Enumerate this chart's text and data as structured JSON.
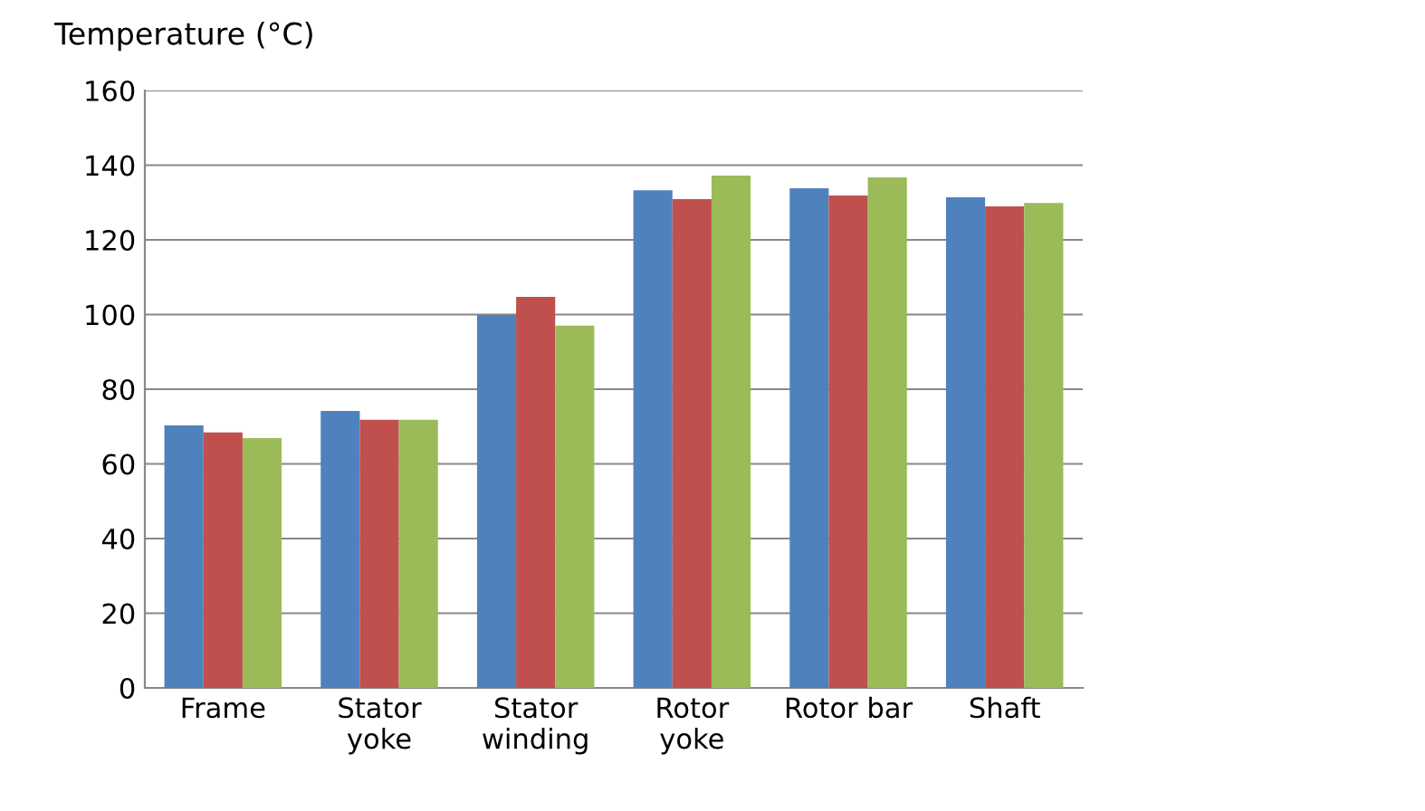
{
  "chart_data": {
    "type": "bar",
    "ylabel": "Temperature (°C)",
    "categories": [
      "Frame",
      "Stator\nyoke",
      "Stator\nwinding",
      "Rotor\nyoke",
      "Rotor bar",
      "Shaft"
    ],
    "series": [
      {
        "color": "#4f81bd",
        "values": [
          70.3,
          74.2,
          99.9,
          133.3,
          133.8,
          131.4
        ]
      },
      {
        "color": "#c0504d",
        "values": [
          68.4,
          71.8,
          104.7,
          130.9,
          131.9,
          129.0
        ]
      },
      {
        "color": "#9bbb59",
        "values": [
          66.9,
          71.8,
          97.0,
          137.2,
          136.7,
          129.9
        ]
      }
    ],
    "ylim": [
      0,
      160
    ],
    "yticks": [
      0,
      20,
      40,
      60,
      80,
      100,
      120,
      140,
      160
    ],
    "grid": "y"
  }
}
